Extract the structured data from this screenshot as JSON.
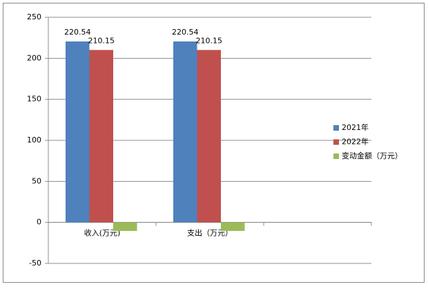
{
  "chart_data": {
    "type": "bar",
    "categories": [
      "收入(万元)",
      "支出（万元）",
      null
    ],
    "series": [
      {
        "name": "2021年",
        "color": "#4f81bd",
        "values": [
          220.54,
          220.54,
          null
        ],
        "show_labels": true
      },
      {
        "name": "2022年",
        "color": "#c0504d",
        "values": [
          210.15,
          210.15,
          null
        ],
        "show_labels": true
      },
      {
        "name": "变动金额（万元）",
        "color": "#9bbb59",
        "values": [
          -10.39,
          -10.39,
          null
        ],
        "show_labels": false
      }
    ],
    "ylim": [
      -50,
      250
    ],
    "yticks": [
      -50,
      0,
      50,
      100,
      150,
      200,
      250
    ],
    "grid": true,
    "legend": "right"
  }
}
